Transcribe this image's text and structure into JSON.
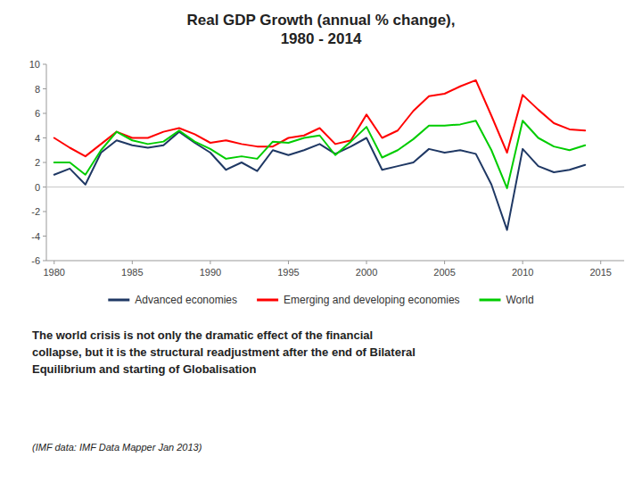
{
  "chart_data": {
    "type": "line",
    "title": "Real GDP Growth (annual % change),\n1980 - 2014",
    "x": [
      1980,
      1981,
      1982,
      1983,
      1984,
      1985,
      1986,
      1987,
      1988,
      1989,
      1990,
      1991,
      1992,
      1993,
      1994,
      1995,
      1996,
      1997,
      1998,
      1999,
      2000,
      2001,
      2002,
      2003,
      2004,
      2005,
      2006,
      2007,
      2008,
      2009,
      2010,
      2011,
      2012,
      2013,
      2014
    ],
    "series": [
      {
        "name": "Advanced economies",
        "color": "#1F3864",
        "values": [
          1.0,
          1.5,
          0.2,
          2.8,
          3.8,
          3.4,
          3.2,
          3.4,
          4.5,
          3.6,
          2.8,
          1.4,
          2.0,
          1.3,
          3.0,
          2.6,
          3.0,
          3.5,
          2.7,
          3.3,
          4.0,
          1.4,
          1.7,
          2.0,
          3.1,
          2.8,
          3.0,
          2.7,
          0.2,
          -3.5,
          3.1,
          1.7,
          1.2,
          1.4,
          1.8
        ]
      },
      {
        "name": "Emerging and developing economies",
        "color": "#FF0000",
        "values": [
          4.0,
          3.2,
          2.5,
          3.5,
          4.5,
          4.0,
          4.0,
          4.5,
          4.8,
          4.3,
          3.6,
          3.8,
          3.5,
          3.3,
          3.3,
          4.0,
          4.2,
          4.8,
          3.5,
          3.8,
          5.9,
          4.0,
          4.6,
          6.2,
          7.4,
          7.6,
          8.2,
          8.7,
          5.8,
          2.8,
          7.5,
          6.3,
          5.2,
          4.7,
          4.6
        ]
      },
      {
        "name": "World",
        "color": "#00CC00",
        "values": [
          2.0,
          2.0,
          1.0,
          3.0,
          4.5,
          3.8,
          3.5,
          3.7,
          4.6,
          3.7,
          3.1,
          2.3,
          2.5,
          2.3,
          3.7,
          3.6,
          4.0,
          4.2,
          2.6,
          3.7,
          4.9,
          2.4,
          3.0,
          3.9,
          5.0,
          5.0,
          5.1,
          5.4,
          3.0,
          -0.1,
          5.4,
          4.0,
          3.3,
          3.0,
          3.4
        ]
      }
    ],
    "xlim": [
      1979.5,
      2016.5
    ],
    "xticks": [
      1980,
      1985,
      1990,
      1995,
      2000,
      2005,
      2010,
      2015
    ],
    "ylim": [
      -6,
      10
    ],
    "yticks": [
      -6,
      -4,
      -2,
      0,
      2,
      4,
      6,
      8,
      10
    ],
    "grid": false,
    "legend": "bottom",
    "annotations": [
      "The world crisis is not only the dramatic effect of the financial\ncollapse, but it is the structural readjustment after the end of Bilateral\nEquilibrium and starting of Globalisation",
      "(IMF data: IMF Data Mapper Jan 2013)"
    ]
  }
}
